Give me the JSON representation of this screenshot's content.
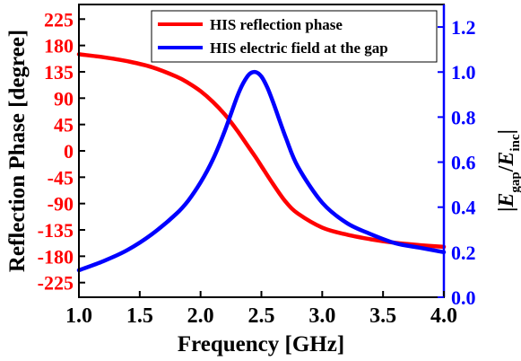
{
  "chart_data": {
    "type": "line",
    "xlabel": "Frequency [GHz]",
    "xlim": [
      1.0,
      4.0
    ],
    "x_ticks": [
      "1.0",
      "1.5",
      "2.0",
      "2.5",
      "3.0",
      "3.5",
      "4.0"
    ],
    "ylabel_left": "Reflection Phase [degree]",
    "ylim_left": [
      -250,
      250
    ],
    "y_ticks_left": [
      "225",
      "180",
      "135",
      "90",
      "45",
      "0",
      "-45",
      "-90",
      "-135",
      "-180",
      "-225"
    ],
    "ylabel_right": "|E_gap/E_inc|",
    "ylim_right": [
      0.0,
      1.3
    ],
    "y_ticks_right": [
      "0.0",
      "0.2",
      "0.4",
      "0.6",
      "0.8",
      "1.0",
      "1.2"
    ],
    "grid": false,
    "legend_position": "top-right",
    "series": [
      {
        "name": "HIS reflection phase",
        "axis": "left",
        "color": "#ff0000",
        "x": [
          1.0,
          1.2,
          1.4,
          1.6,
          1.8,
          1.9,
          2.0,
          2.1,
          2.2,
          2.3,
          2.4,
          2.45,
          2.5,
          2.6,
          2.7,
          2.8,
          3.0,
          3.2,
          3.4,
          3.6,
          3.8,
          4.0
        ],
        "y": [
          165,
          160,
          153,
          143,
          127,
          116,
          102,
          84,
          62,
          35,
          5,
          -10,
          -26,
          -58,
          -87,
          -107,
          -131,
          -143,
          -151,
          -157,
          -161,
          -164
        ]
      },
      {
        "name": "HIS electric field at the gap",
        "axis": "right",
        "color": "#0000ff",
        "x": [
          1.0,
          1.2,
          1.4,
          1.6,
          1.8,
          1.9,
          2.0,
          2.1,
          2.2,
          2.3,
          2.35,
          2.4,
          2.45,
          2.5,
          2.55,
          2.6,
          2.7,
          2.8,
          3.0,
          3.2,
          3.4,
          3.6,
          3.8,
          4.0
        ],
        "y": [
          0.12,
          0.16,
          0.21,
          0.28,
          0.37,
          0.43,
          0.51,
          0.61,
          0.74,
          0.89,
          0.95,
          0.99,
          1.0,
          0.98,
          0.93,
          0.86,
          0.71,
          0.58,
          0.42,
          0.33,
          0.28,
          0.24,
          0.22,
          0.2
        ]
      }
    ]
  }
}
